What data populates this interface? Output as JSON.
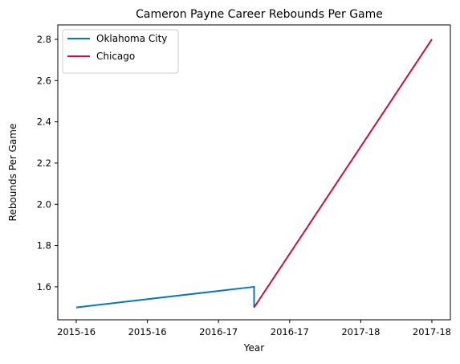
{
  "chart_data": {
    "type": "line",
    "title": "Cameron Payne Career Rebounds Per Game",
    "xlabel": "Year",
    "ylabel": "Rebounds Per Game",
    "x_ticks": [
      "2015-16",
      "2015-16",
      "2016-17",
      "2016-17",
      "2017-18",
      "2017-18"
    ],
    "x_tick_positions": [
      0,
      0.5,
      1,
      1.5,
      2,
      2.5
    ],
    "xlim": [
      -0.13,
      2.63
    ],
    "ylim": [
      1.44,
      2.87
    ],
    "y_ticks": [
      1.6,
      1.8,
      2.0,
      2.2,
      2.4,
      2.6,
      2.8
    ],
    "y_tick_labels": [
      "1.6",
      "1.8",
      "2.0",
      "2.2",
      "2.4",
      "2.6",
      "2.8"
    ],
    "grid": false,
    "legend_position": "top-left",
    "series": [
      {
        "name": "Oklahoma City",
        "color": "#0a77bd",
        "points": [
          {
            "x": 0,
            "y": 1.5
          },
          {
            "x": 1.25,
            "y": 1.6
          },
          {
            "x": 1.25,
            "y": 1.5
          }
        ]
      },
      {
        "name": "Chicago",
        "color": "#c8103e",
        "points": [
          {
            "x": 1.25,
            "y": 1.5
          },
          {
            "x": 2.5,
            "y": 2.8
          }
        ]
      }
    ]
  }
}
